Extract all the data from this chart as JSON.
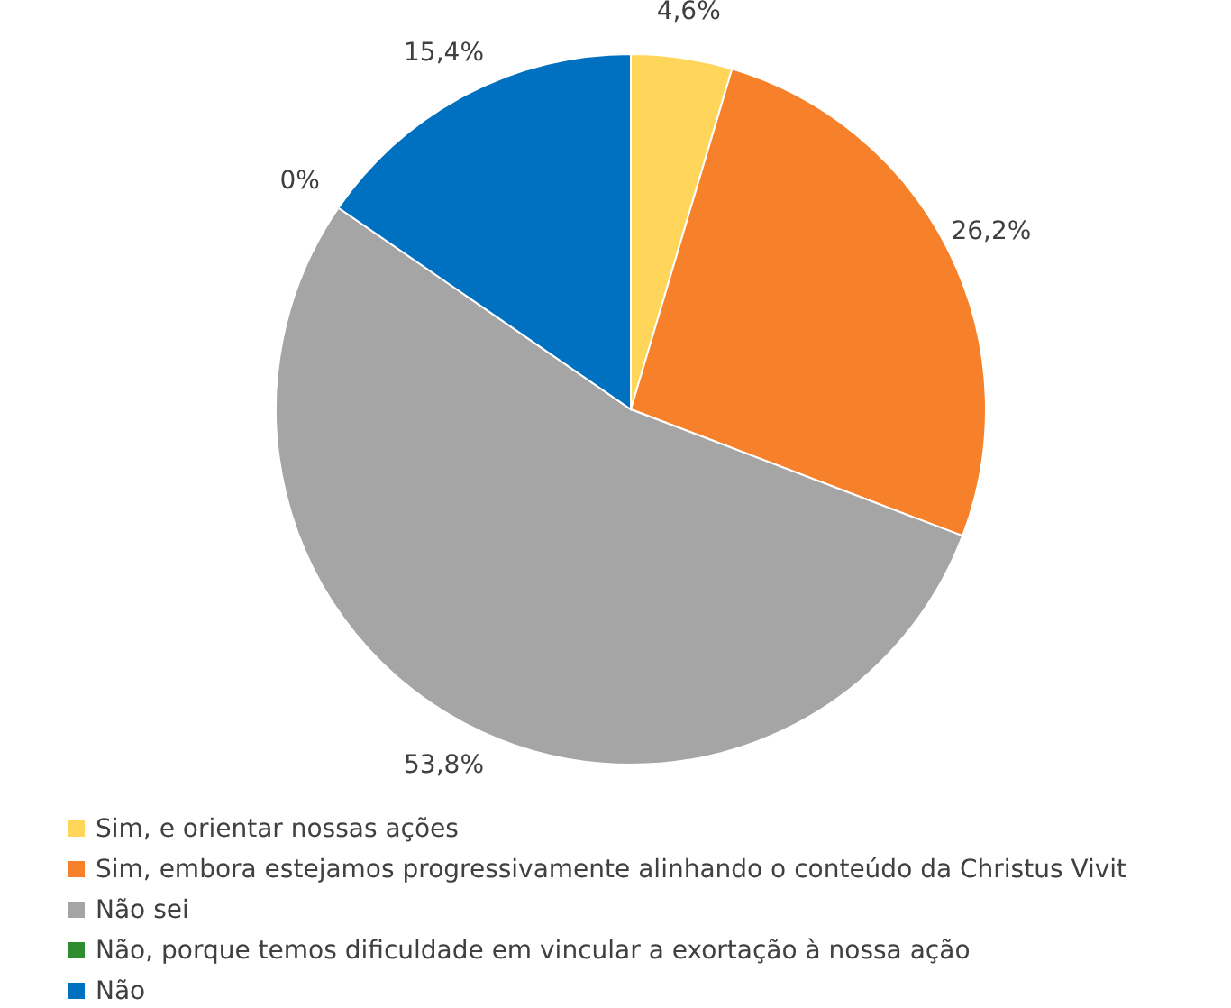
{
  "chart_data": {
    "type": "pie",
    "categories": [
      "Sim, e orientar nossas ações",
      "Sim, embora estejamos progressivamente alinhando o conteúdo da Christus Vivit",
      "Não sei",
      "Não, porque temos dificuldade em vincular a exortação à nossa ação",
      "Não"
    ],
    "values": [
      4.6,
      26.2,
      53.8,
      0,
      15.4
    ],
    "colors": [
      "#ffd55a",
      "#f7812a",
      "#a5a5a5",
      "#2e8b2e",
      "#0070c0"
    ],
    "value_labels": [
      "4,6%",
      "26,2%",
      "53,8%",
      "0%",
      "15,4%"
    ],
    "legend": "bottom"
  }
}
